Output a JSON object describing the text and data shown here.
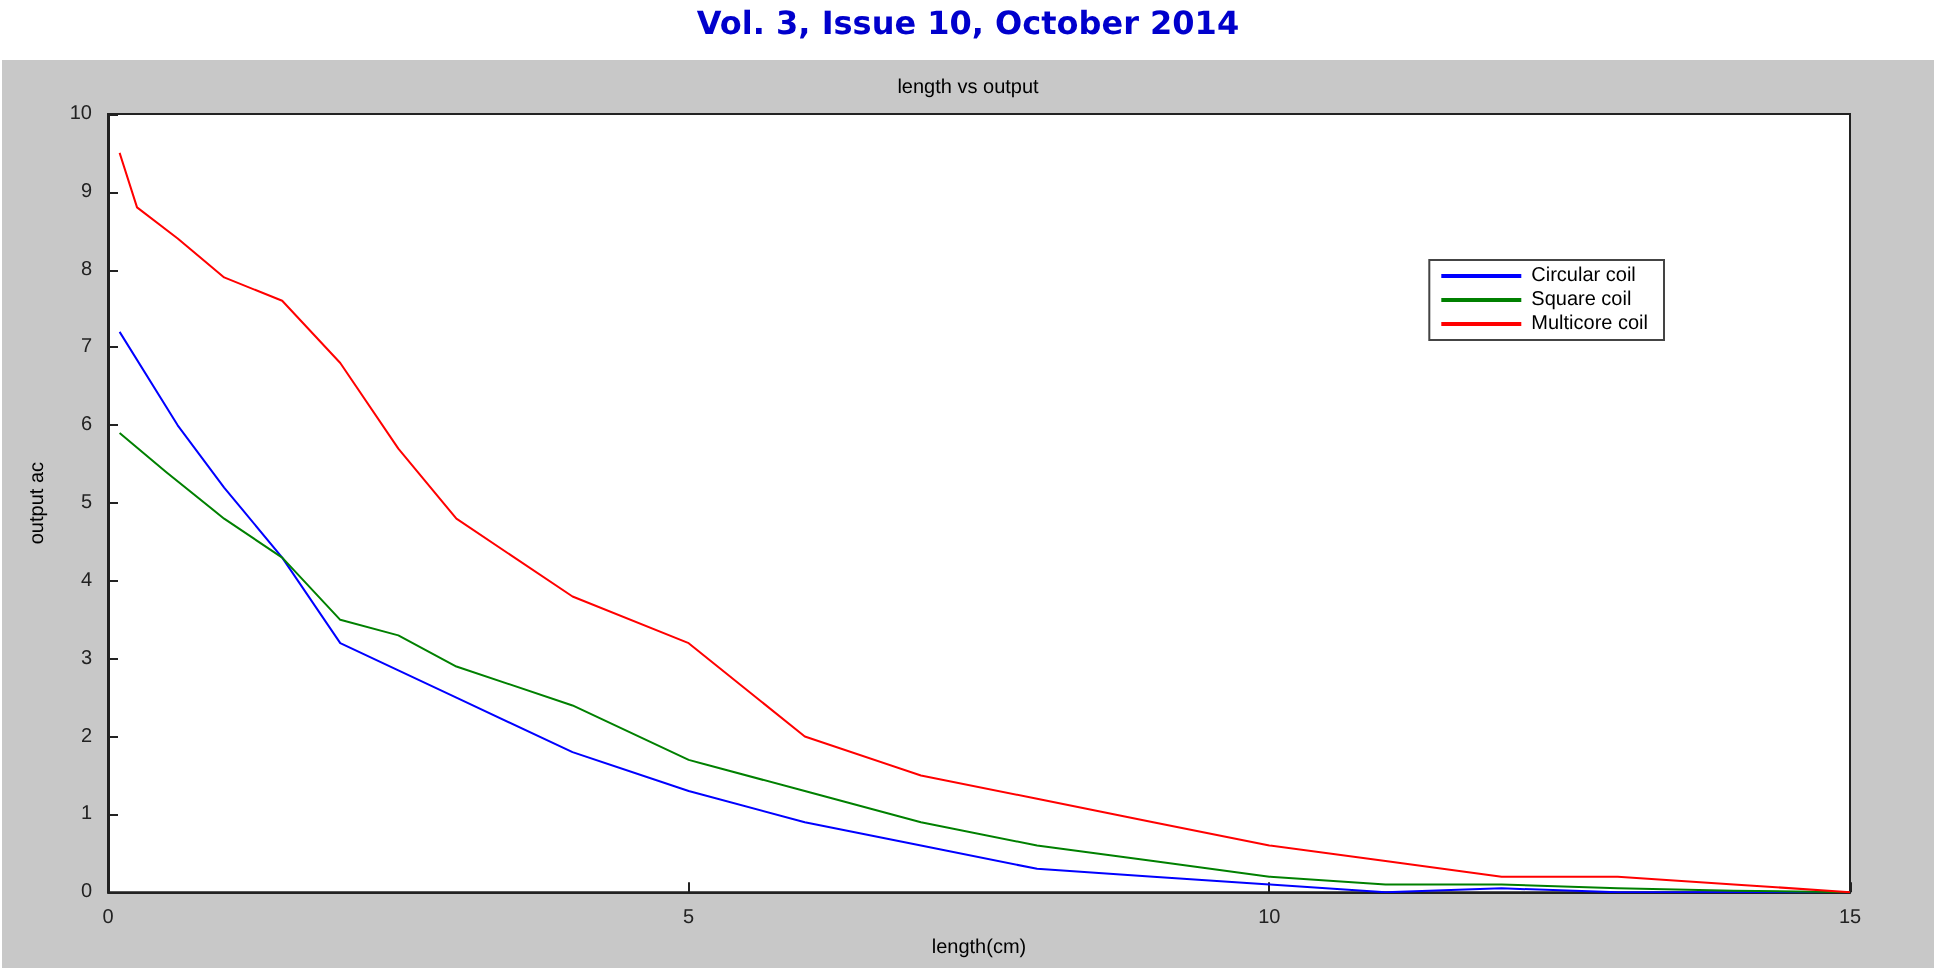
{
  "chart_data": {
    "type": "line",
    "title": "length vs output",
    "xlabel": "length(cm)",
    "ylabel": "output ac",
    "annotations": [
      "Vol. 3, Issue 10, October 2014"
    ],
    "xlim": [
      0,
      15
    ],
    "xticks": [
      0,
      5,
      10,
      15
    ],
    "ylim": [
      0,
      10
    ],
    "yticks": [
      0,
      1,
      2,
      3,
      4,
      5,
      6,
      7,
      8,
      9,
      10
    ],
    "grid": false,
    "legend": "top right",
    "marker": "none",
    "line_style": "solid",
    "series": [
      {
        "name": "Circular coil",
        "color": "#0000ff",
        "x": [
          0.1,
          0.6,
          1,
          1.5,
          2,
          2.5,
          3,
          4,
          5,
          6,
          7,
          8,
          9,
          10,
          11,
          12,
          13,
          15
        ],
        "values": [
          7.2,
          6.0,
          5.2,
          4.3,
          3.2,
          2.85,
          2.5,
          1.8,
          1.3,
          0.9,
          0.6,
          0.3,
          0.2,
          0.1,
          0,
          0.05,
          0,
          0
        ]
      },
      {
        "name": "Square coil",
        "color": "#008000",
        "x": [
          0.1,
          0.5,
          1,
          1.5,
          2,
          2.5,
          3,
          4,
          5,
          6,
          7,
          8,
          9,
          10,
          11,
          12,
          13,
          14,
          15
        ],
        "values": [
          5.9,
          5.4,
          4.8,
          4.3,
          3.5,
          3.3,
          2.9,
          2.4,
          1.7,
          1.3,
          0.9,
          0.6,
          0.4,
          0.2,
          0.1,
          0.1,
          0.05,
          0.02,
          0
        ]
      },
      {
        "name": "Multicore coil",
        "color": "#ff0000",
        "x": [
          0.1,
          0.25,
          0.6,
          1,
          1.5,
          2,
          2.5,
          3,
          4,
          5,
          6,
          7,
          8,
          9,
          10,
          11,
          12,
          13,
          14,
          15
        ],
        "values": [
          9.5,
          8.8,
          8.4,
          7.9,
          7.6,
          6.8,
          5.7,
          4.8,
          3.8,
          3.2,
          2.0,
          1.5,
          1.2,
          0.9,
          0.6,
          0.4,
          0.2,
          0.2,
          0.1,
          0
        ]
      }
    ]
  }
}
